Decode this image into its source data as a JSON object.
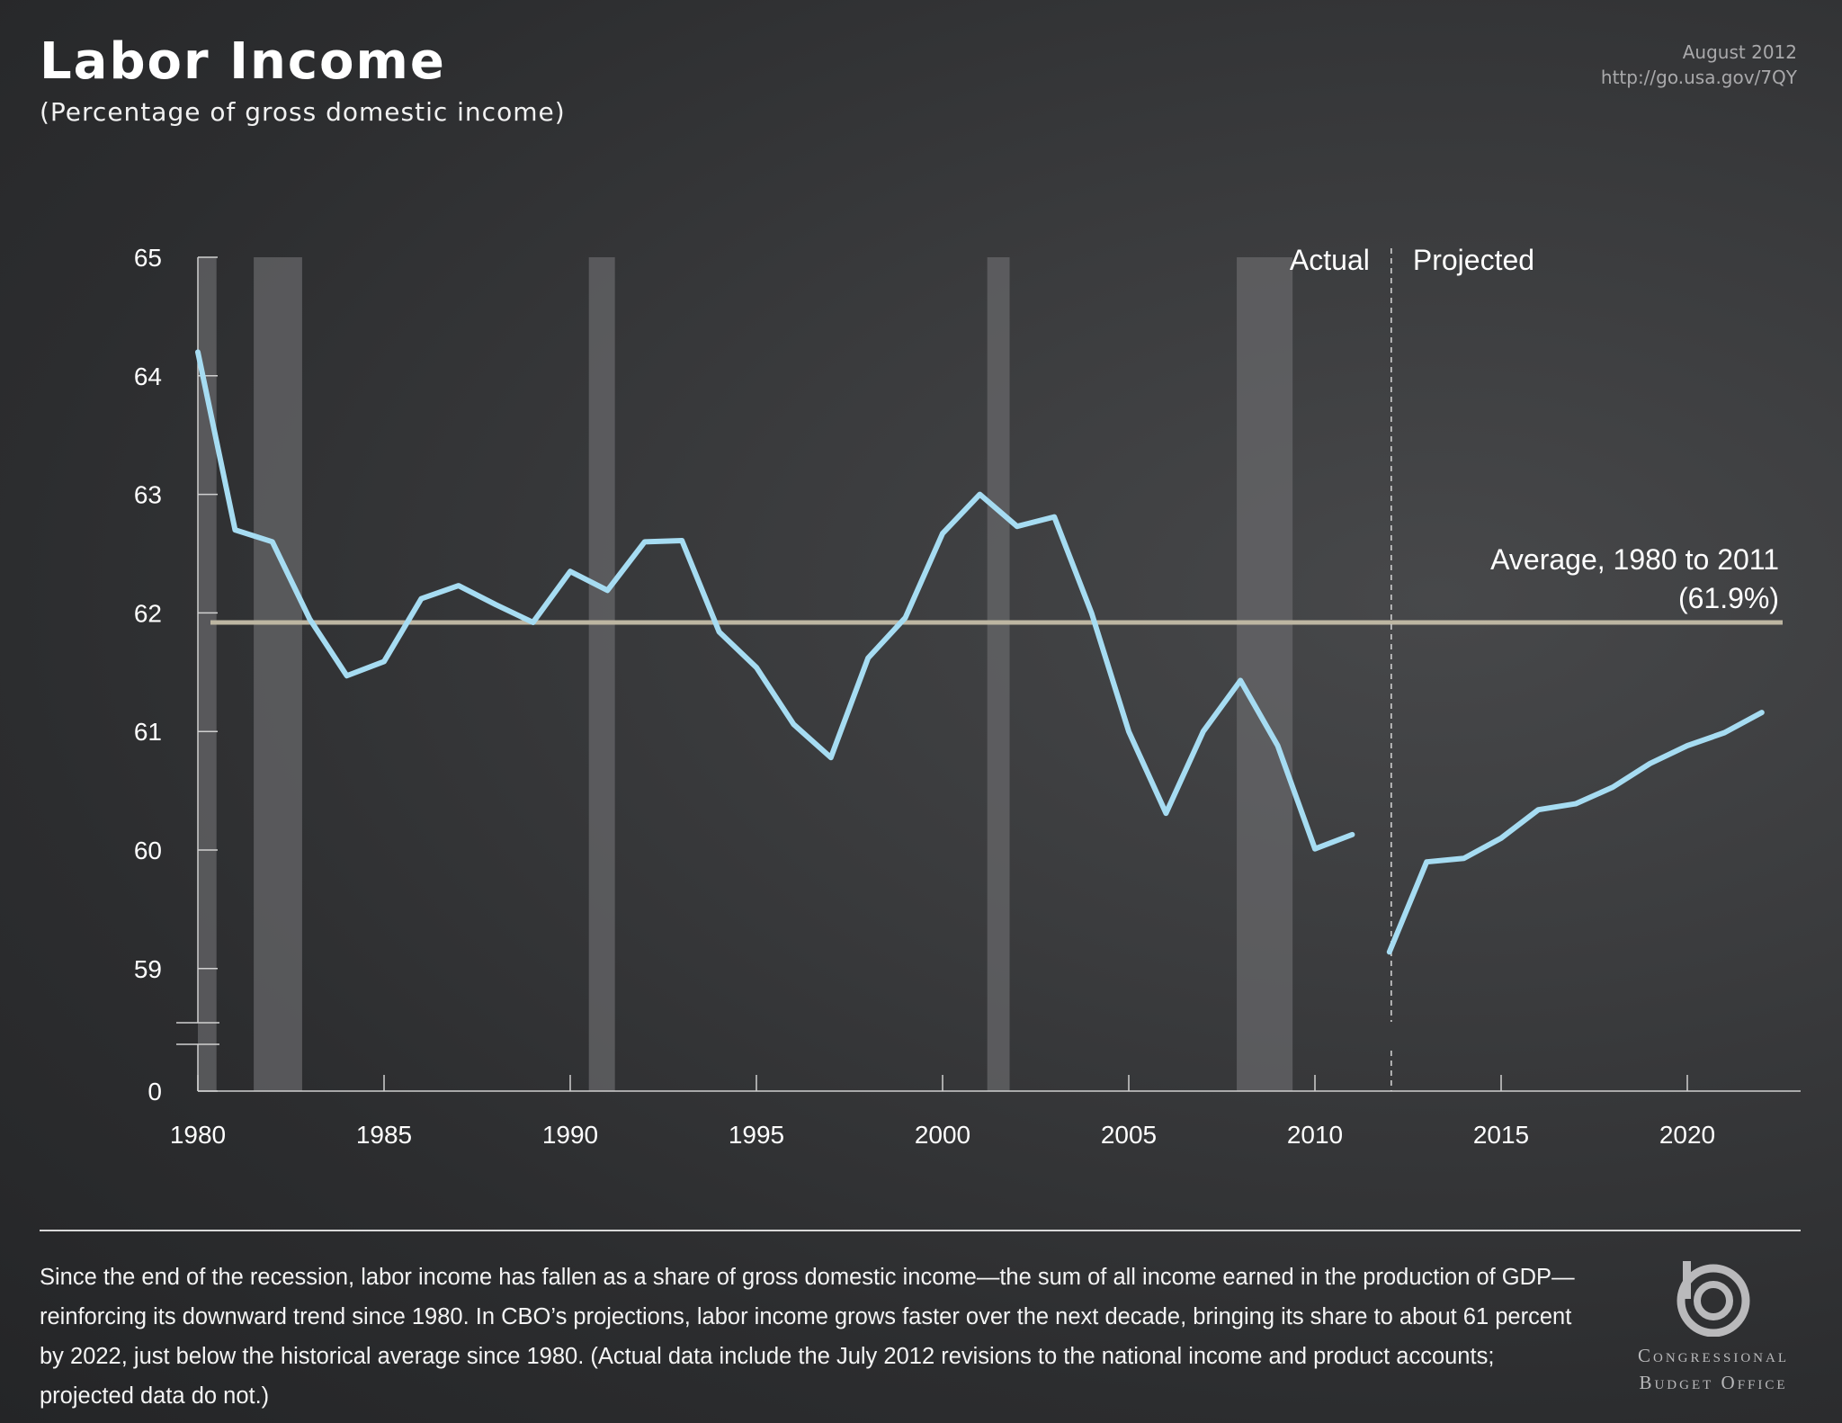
{
  "header": {
    "title": "Labor Income",
    "subtitle": "(Percentage of gross domestic income)",
    "date": "August 2012",
    "url": "http://go.usa.gov/7QY"
  },
  "footer": {
    "note": "Since the end of the recession, labor income has fallen as a share of gross domestic income—the sum of all income earned in the production of GDP—reinforcing its downward trend since 1980. In CBO’s projections, labor income grows faster over the next decade, bringing its share to about 61 percent by 2022, just below the historical average since 1980. (Actual data include the July 2012 revisions to the national income and product accounts; projected data do not.)",
    "logo_line1": "Congressional",
    "logo_line2": "Budget Office"
  },
  "chart_data": {
    "type": "line",
    "ylim": [
      59,
      65
    ],
    "yticks": [
      0,
      59,
      60,
      61,
      62,
      63,
      64,
      65
    ],
    "ytick_labels": [
      "0",
      "59",
      "60",
      "61",
      "62",
      "63",
      "64",
      "65"
    ],
    "y_axis_break": true,
    "xlim": [
      1980,
      2023
    ],
    "xticks": [
      1980,
      1985,
      1990,
      1995,
      2000,
      2005,
      2010,
      2015,
      2020
    ],
    "xtick_labels": [
      "1980",
      "1985",
      "1990",
      "1995",
      "2000",
      "2005",
      "2010",
      "2015",
      "2020"
    ],
    "series": [
      {
        "segment": "actual",
        "x": [
          1980,
          1981,
          1982,
          1983,
          1984,
          1985,
          1986,
          1987,
          1988,
          1989,
          1990,
          1991,
          1992,
          1993,
          1994,
          1995,
          1996,
          1997,
          1998,
          1999,
          2000,
          2001,
          2002,
          2003,
          2004,
          2005,
          2006,
          2007,
          2008,
          2009,
          2010,
          2011
        ],
        "values": [
          64.2,
          62.7,
          62.6,
          61.95,
          61.47,
          61.59,
          62.12,
          62.23,
          62.07,
          61.92,
          62.35,
          62.19,
          62.6,
          62.61,
          61.84,
          61.54,
          61.06,
          60.78,
          61.62,
          61.96,
          62.67,
          63.0,
          62.73,
          62.81,
          62.0,
          61.0,
          60.31,
          61.0,
          61.43,
          60.88,
          60.01,
          60.13
        ]
      },
      {
        "segment": "projected",
        "x": [
          2012,
          2013,
          2014,
          2015,
          2016,
          2017,
          2018,
          2019,
          2020,
          2021,
          2022
        ],
        "values": [
          59.14,
          59.9,
          59.93,
          60.1,
          60.34,
          60.39,
          60.53,
          60.73,
          60.88,
          60.99,
          61.16
        ]
      }
    ],
    "recessions": [
      [
        1980.0,
        1980.5
      ],
      [
        1981.5,
        1982.8
      ],
      [
        1990.5,
        1991.2
      ],
      [
        2001.2,
        2001.8
      ],
      [
        2007.9,
        2009.4
      ]
    ],
    "average": {
      "value": 61.92,
      "label_line1": "Average, 1980 to 2011",
      "label_line2": "(61.9%)"
    },
    "divider": {
      "x": 2012.05,
      "left_label": "Actual",
      "right_label": "Projected"
    },
    "colors": {
      "line": "#a6dcf2",
      "average": "#bdb6a2",
      "recession": "#6a6a6c",
      "axis": "#d0d0d0"
    }
  }
}
